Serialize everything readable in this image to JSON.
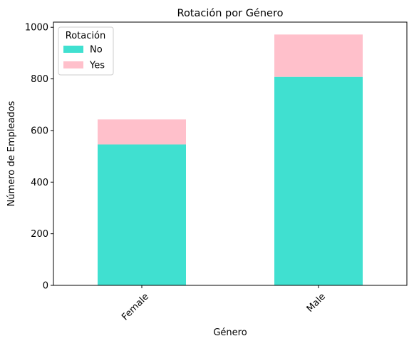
{
  "chart_data": {
    "type": "bar",
    "stacked": true,
    "title": "Rotación por Género",
    "xlabel": "Género",
    "ylabel": "Número de Empleados",
    "categories": [
      "Female",
      "Male"
    ],
    "series": [
      {
        "name": "No",
        "values": [
          546,
          808
        ],
        "color": "#40e0d0"
      },
      {
        "name": "Yes",
        "values": [
          97,
          164
        ],
        "color": "#ffc0cb"
      }
    ],
    "ylim": [
      0,
      1020
    ],
    "yticks": [
      0,
      200,
      400,
      600,
      800,
      1000
    ],
    "xtick_rotation": 45,
    "grid": false,
    "legend": {
      "title": "Rotación",
      "placement": "top-left"
    }
  }
}
